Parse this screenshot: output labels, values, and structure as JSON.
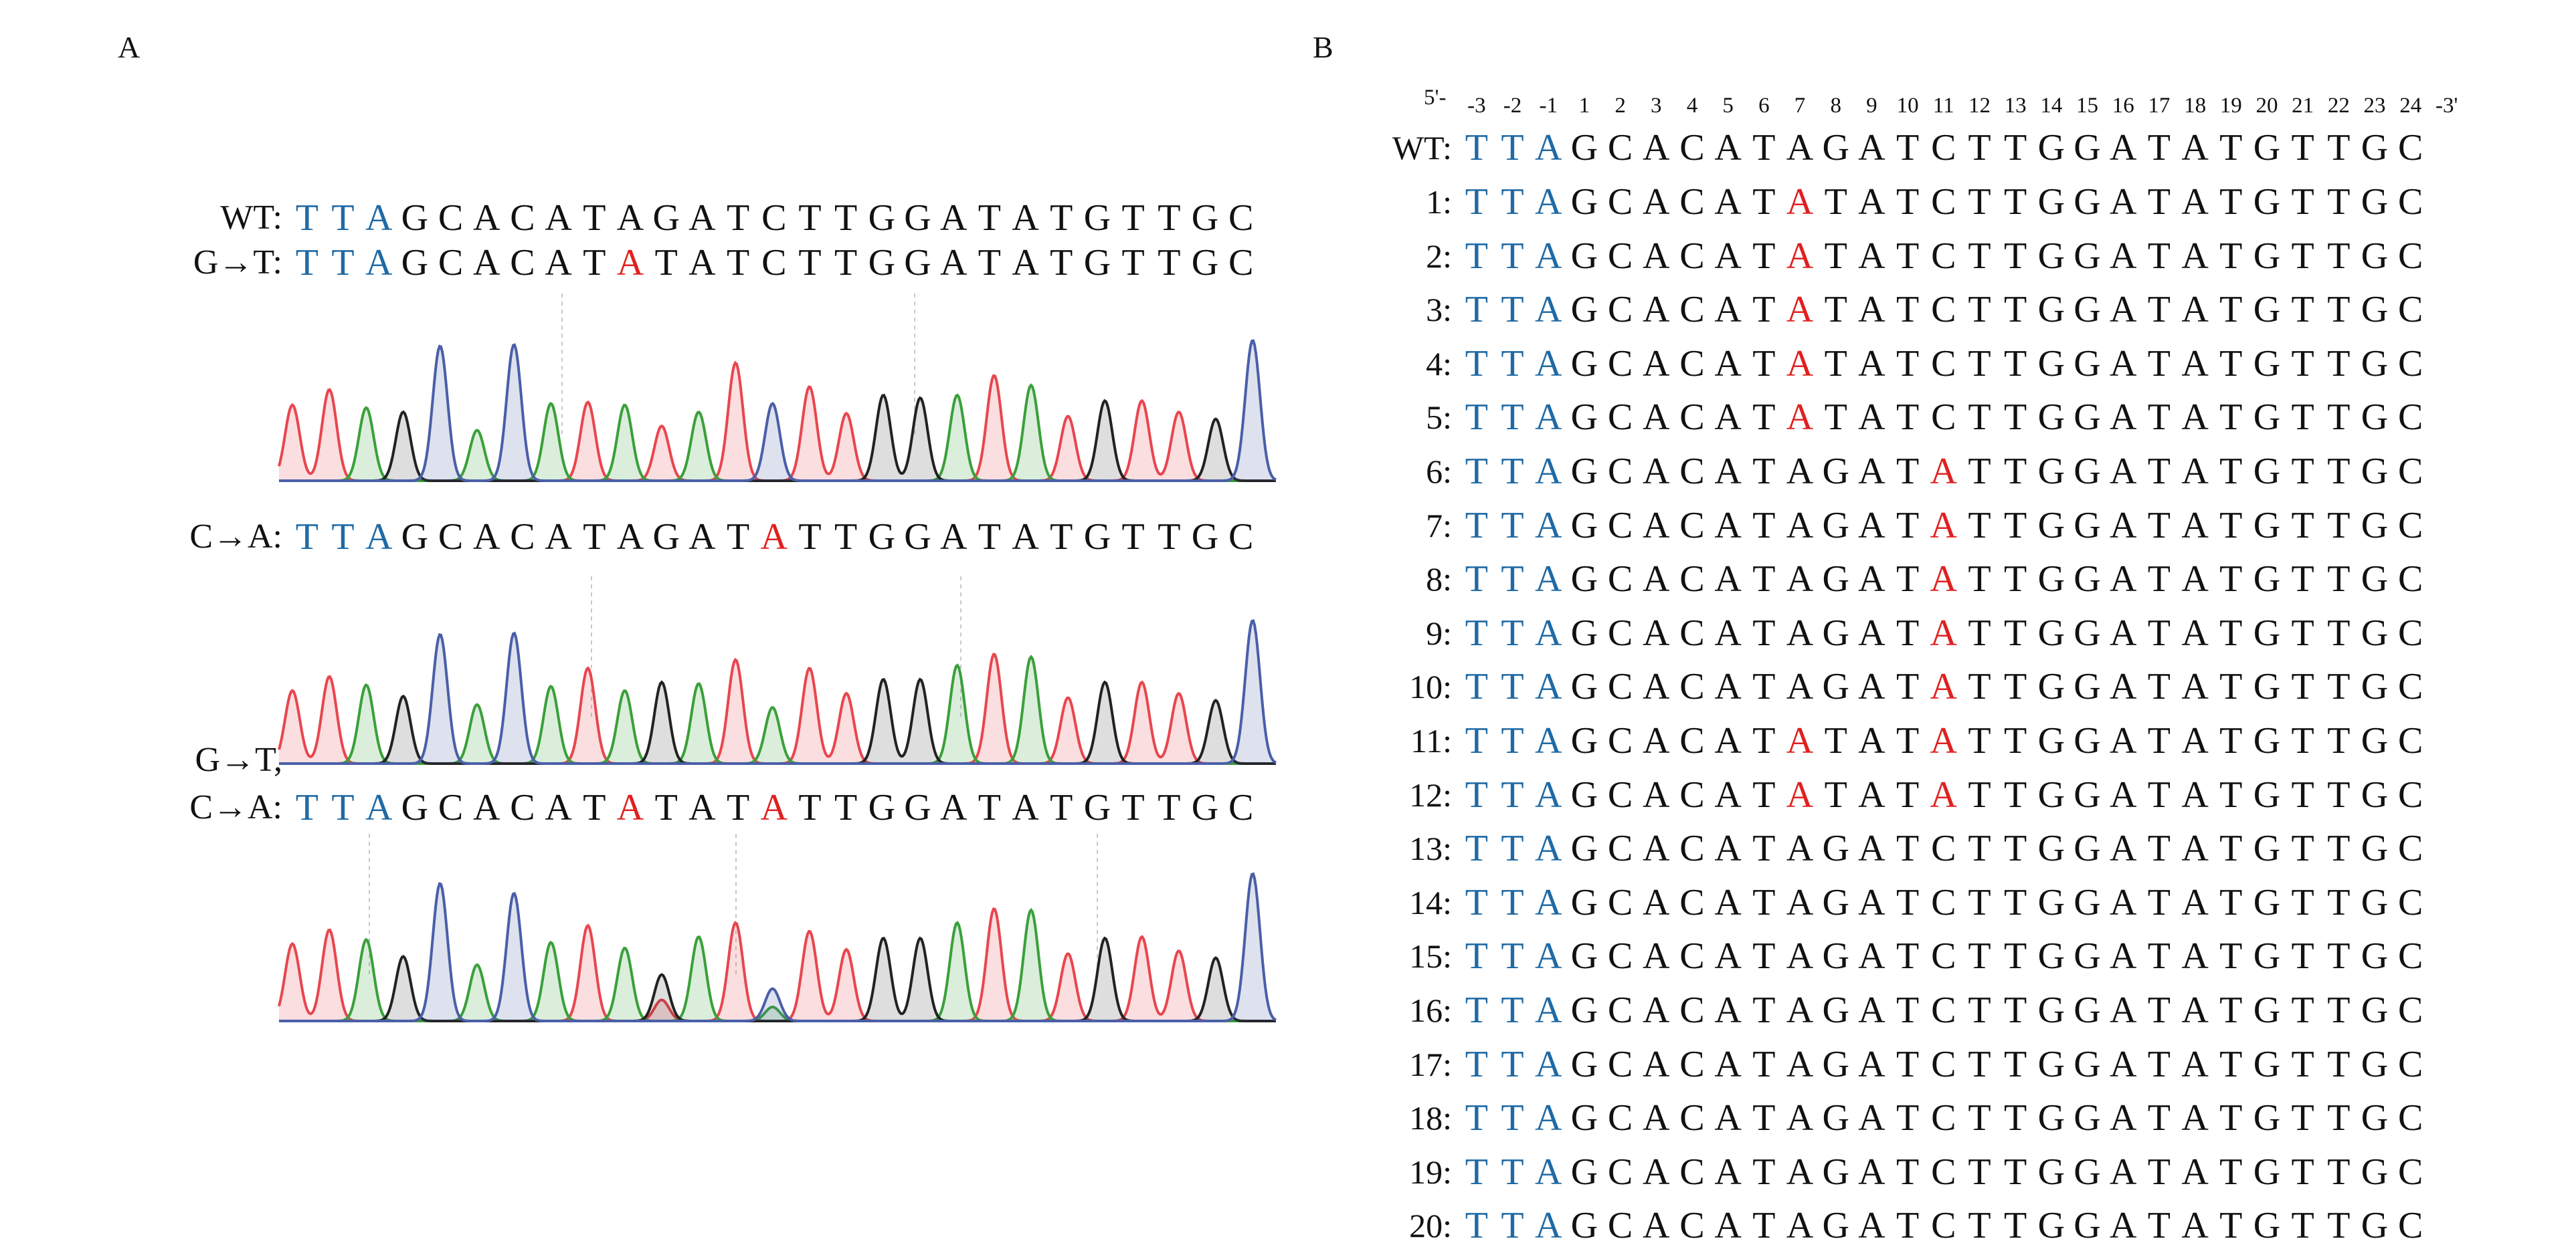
{
  "panel_a": {
    "letter": "A",
    "rows": [
      {
        "label": "WT:",
        "sequence": "TTAGCACATAGATCTTGGATATGTTGC",
        "mutations": []
      },
      {
        "label": "G→T:",
        "sequence": "TTAGCACATATATCTTGGATATGTTGC",
        "mutations": [
          9
        ]
      },
      {
        "label": "C→A:",
        "sequence": "TTAGCACATAGATATTGGATATGTTGC",
        "mutations": [
          13
        ]
      },
      {
        "label": "G→T,",
        "sequence": "",
        "mutations": []
      },
      {
        "label": "C→A:",
        "sequence": "TTAGCACATATATATTGGATATGTTGC",
        "mutations": [
          9,
          13
        ]
      }
    ],
    "chromatograms": [
      {
        "bases": "TTAGCACATATATCTTGGATATGTTGC",
        "heights": [
          0.54,
          0.65,
          0.52,
          0.49,
          0.96,
          0.36,
          0.97,
          0.55,
          0.56,
          0.54,
          0.39,
          0.49,
          0.84,
          0.55,
          0.67,
          0.48,
          0.61,
          0.59,
          0.61,
          0.75,
          0.68,
          0.46,
          0.57,
          0.57,
          0.49,
          0.44,
          1.0
        ],
        "secondary": []
      },
      {
        "bases": "TTAGCACATAGATATTGGATATGTTGC",
        "heights": [
          0.52,
          0.62,
          0.56,
          0.48,
          0.92,
          0.42,
          0.93,
          0.55,
          0.68,
          0.52,
          0.58,
          0.57,
          0.74,
          0.4,
          0.68,
          0.5,
          0.6,
          0.6,
          0.7,
          0.78,
          0.76,
          0.47,
          0.58,
          0.58,
          0.5,
          0.45,
          1.02
        ],
        "secondary": []
      },
      {
        "bases": "TTAGCACATAGATCTTGGATATGTTGC",
        "heights": [
          0.55,
          0.65,
          0.58,
          0.46,
          0.98,
          0.4,
          0.91,
          0.56,
          0.68,
          0.52,
          0.33,
          0.6,
          0.7,
          0.23,
          0.64,
          0.51,
          0.59,
          0.59,
          0.7,
          0.8,
          0.79,
          0.48,
          0.59,
          0.6,
          0.5,
          0.45,
          1.05
        ],
        "secondary": [
          {
            "index": 10,
            "base": "T",
            "height": 0.15
          },
          {
            "index": 13,
            "base": "A",
            "height": 0.1
          }
        ]
      }
    ],
    "trace_colors": {
      "T": "#e8464f",
      "A": "#3aa03a",
      "G": "#222222",
      "C": "#4a5fa8"
    }
  },
  "panel_b": {
    "letter": "B",
    "five_prime": "5'-",
    "three_prime": "-3'",
    "positions": [
      "-3",
      "-2",
      "-1",
      "1",
      "2",
      "3",
      "4",
      "5",
      "6",
      "7",
      "8",
      "9",
      "10",
      "11",
      "12",
      "13",
      "14",
      "15",
      "16",
      "17",
      "18",
      "19",
      "20",
      "21",
      "22",
      "23",
      "24"
    ],
    "rows": [
      {
        "label": "WT:",
        "sequence": "TTAGCACATAGATCTTGGATATGTTGC",
        "mutations": []
      },
      {
        "label": "1:",
        "sequence": "TTAGCACATATATCTTGGATATGTTGC",
        "mutations": [
          9
        ]
      },
      {
        "label": "2:",
        "sequence": "TTAGCACATATATCTTGGATATGTTGC",
        "mutations": [
          9
        ]
      },
      {
        "label": "3:",
        "sequence": "TTAGCACATATATCTTGGATATGTTGC",
        "mutations": [
          9
        ]
      },
      {
        "label": "4:",
        "sequence": "TTAGCACATATATCTTGGATATGTTGC",
        "mutations": [
          9
        ]
      },
      {
        "label": "5:",
        "sequence": "TTAGCACATATATCTTGGATATGTTGC",
        "mutations": [
          9
        ]
      },
      {
        "label": "6:",
        "sequence": "TTAGCACATAGATATTGGATATGTTGC",
        "mutations": [
          13
        ]
      },
      {
        "label": "7:",
        "sequence": "TTAGCACATAGATATTGGATATGTTGC",
        "mutations": [
          13
        ]
      },
      {
        "label": "8:",
        "sequence": "TTAGCACATAGATATTGGATATGTTGC",
        "mutations": [
          13
        ]
      },
      {
        "label": "9:",
        "sequence": "TTAGCACATAGATATTGGATATGTTGC",
        "mutations": [
          13
        ]
      },
      {
        "label": "10:",
        "sequence": "TTAGCACATAGATATTGGATATGTTGC",
        "mutations": [
          13
        ]
      },
      {
        "label": "11:",
        "sequence": "TTAGCACATATATATTGGATATGTTGC",
        "mutations": [
          9,
          13
        ]
      },
      {
        "label": "12:",
        "sequence": "TTAGCACATATATATTGGATATGTTGC",
        "mutations": [
          9,
          13
        ]
      },
      {
        "label": "13:",
        "sequence": "TTAGCACATAGATCTTGGATATGTTGC",
        "mutations": []
      },
      {
        "label": "14:",
        "sequence": "TTAGCACATAGATCTTGGATATGTTGC",
        "mutations": []
      },
      {
        "label": "15:",
        "sequence": "TTAGCACATAGATCTTGGATATGTTGC",
        "mutations": []
      },
      {
        "label": "16:",
        "sequence": "TTAGCACATAGATCTTGGATATGTTGC",
        "mutations": []
      },
      {
        "label": "17:",
        "sequence": "TTAGCACATAGATCTTGGATATGTTGC",
        "mutations": []
      },
      {
        "label": "18:",
        "sequence": "TTAGCACATAGATCTTGGATATGTTGC",
        "mutations": []
      },
      {
        "label": "19:",
        "sequence": "TTAGCACATAGATCTTGGATATGTTGC",
        "mutations": []
      },
      {
        "label": "20:",
        "sequence": "TTAGCACATAGATCTTGGATATGTTGC",
        "mutations": []
      }
    ]
  },
  "colors": {
    "flank": "#1f6aa5",
    "mutation": "#e02020"
  }
}
